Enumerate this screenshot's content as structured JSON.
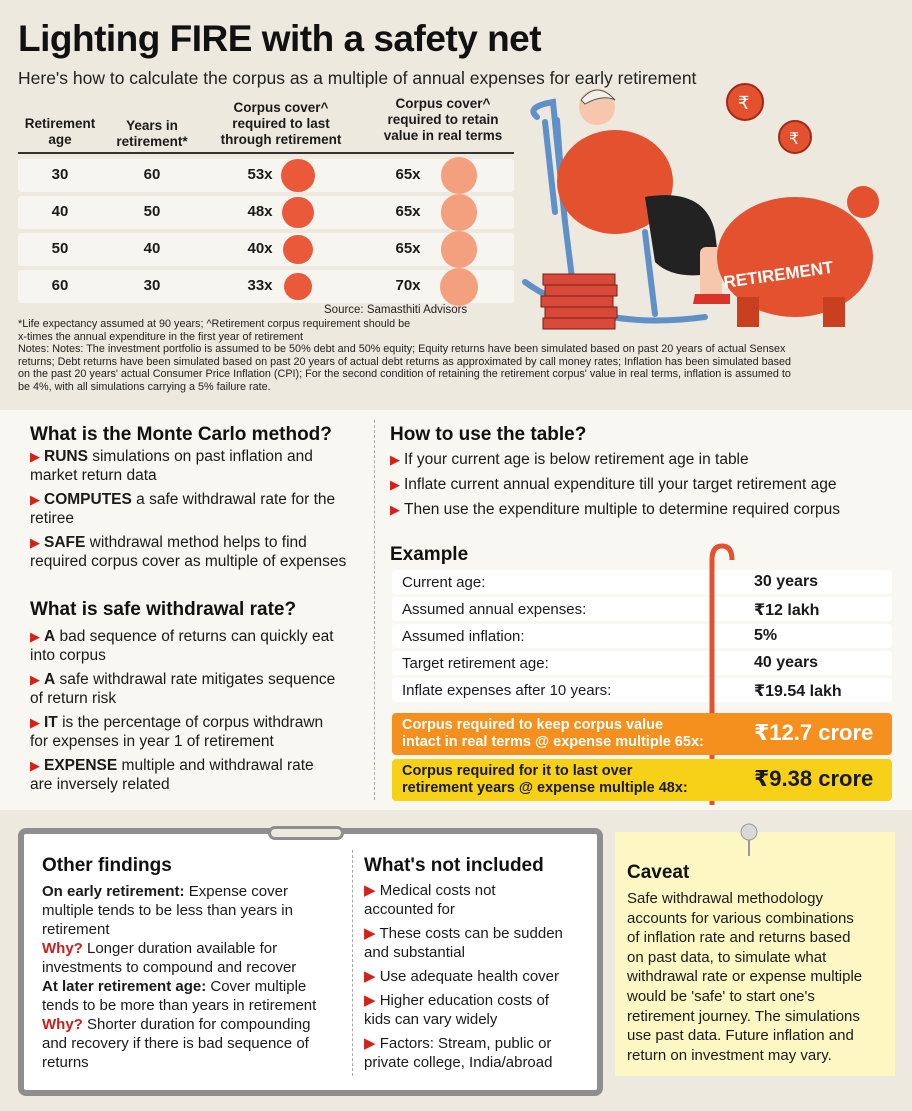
{
  "title": "Lighting FIRE with a safety net",
  "subtitle": "Here's how to calculate the corpus as a multiple of annual expenses for early retirement",
  "colors": {
    "cover_last": "#ea5a3a",
    "cover_real": "#f4a07f",
    "accent_red": "#d5211c",
    "orange": "#f5901e",
    "yellow": "#f7d117"
  },
  "chart_data": {
    "type": "table",
    "columns": [
      "Retirement age",
      "Years in retirement*",
      "Corpus cover^ required to last through retirement",
      "Corpus cover^ required to retain value in real terms"
    ],
    "rows": [
      {
        "age": "30",
        "years": "60",
        "last": "53x",
        "last_value": 53,
        "real": "65x",
        "real_value": 65
      },
      {
        "age": "40",
        "years": "50",
        "last": "48x",
        "last_value": 48,
        "real": "65x",
        "real_value": 65
      },
      {
        "age": "50",
        "years": "40",
        "last": "40x",
        "last_value": 40,
        "real": "65x",
        "real_value": 65
      },
      {
        "age": "60",
        "years": "30",
        "last": "33x",
        "last_value": 33,
        "real": "70x",
        "real_value": 70
      }
    ]
  },
  "table_headers": {
    "h1a": "Retirement",
    "h1b": "age",
    "h2a": "Years in",
    "h2b": "retirement*",
    "h3a": "Corpus cover^",
    "h3b": "required to last",
    "h3c": "through retirement",
    "h4a": "Corpus cover^",
    "h4b": "required to retain",
    "h4c": "value in real terms"
  },
  "illustration": {
    "piggy_label": "RETIREMENT",
    "coin_symbol": "₹"
  },
  "source": "Source: Samasthiti Advisors",
  "notes": {
    "line1": "*Life expectancy assumed at 90 years; ^Retirement corpus requirement should be",
    "line2": "x-times the annual expenditure in the first year of retirement",
    "line3": "Notes: Notes: The investment portfolio is assumed to be 50% debt and 50% equity; Equity returns have been simulated based on past 20 years of actual Sensex",
    "line4": "returns; Debt returns have been simulated based on past 20 years of actual debt returns as approximated by call money rates; Inflation has been simulated based",
    "line5": "on the past 20 years' actual Consumer Price Inflation (CPI); For the second condition of retaining the retirement corpus' value in real terms, inflation is assumed to",
    "line6": "be 4%, with all simulations carrying a 5% failure rate."
  },
  "monte_carlo": {
    "heading": "What is the Monte Carlo method?",
    "b1_bold": "RUNS",
    "b1_l1": " simulations on past inflation and",
    "b1_l2": "market return data",
    "b2_bold": "COMPUTES",
    "b2_l1": " a safe withdrawal rate for the",
    "b2_l2": "retiree",
    "b3_bold": "SAFE",
    "b3_l1": " withdrawal method helps to find",
    "b3_l2": "required corpus cover as multiple of expenses"
  },
  "swr": {
    "heading": "What is safe withdrawal rate?",
    "b1_bold": "A",
    "b1_l1": " bad sequence of returns can quickly eat",
    "b1_l2": "into corpus",
    "b2_bold": "A",
    "b2_l1": " safe withdrawal rate mitigates sequence",
    "b2_l2": "of return risk",
    "b3_bold": "IT",
    "b3_l1": " is the percentage of corpus withdrawn",
    "b3_l2": "for expenses in year 1 of retirement",
    "b4_bold": "EXPENSE",
    "b4_l1": " multiple and withdrawal rate",
    "b4_l2": "are inversely related"
  },
  "how_to": {
    "heading": "How to use the table?",
    "b1": "If your current age is below retirement age in table",
    "b2": "Inflate current annual expenditure till your target retirement age",
    "b3": "Then use the expenditure multiple to determine required corpus"
  },
  "example": {
    "heading": "Example",
    "rows": [
      {
        "k": "Current age:",
        "v": "30 years"
      },
      {
        "k": "Assumed annual expenses:",
        "v": "₹12 lakh"
      },
      {
        "k": "Assumed inflation:",
        "v": "5%"
      },
      {
        "k": "Target retirement age:",
        "v": "40 years"
      },
      {
        "k": "Inflate expenses after 10 years:",
        "v": "₹19.54 lakh"
      }
    ],
    "hl1_l1": "Corpus required to keep corpus value",
    "hl1_l2": "intact in real terms @ expense multiple 65x:",
    "hl1_v": "₹12.7 crore",
    "hl2_l1": "Corpus required for it to last over",
    "hl2_l2": "retirement years @ expense multiple 48x:",
    "hl2_v": "₹9.38 crore"
  },
  "other": {
    "heading": "Other findings",
    "e_bold": "On early retirement:",
    "e_l1": " Expense cover",
    "e_l2": "multiple tends to be less than years in",
    "e_l3": "retirement",
    "why": "Why?",
    "w1_l1": " Longer duration available for",
    "w1_l2": "investments to compound and recover",
    "l_bold": "At later retirement age:",
    "l_l1": " Cover multiple",
    "l_l2": "tends to be more than years in retirement",
    "w2_l1": " Shorter duration for compounding",
    "w2_l2": "and recovery if there is bad sequence of",
    "w2_l3": "returns"
  },
  "not_included": {
    "heading": "What's not included",
    "b1_l1": "Medical costs not",
    "b1_l2": "accounted for",
    "b2_l1": "These costs can be sudden",
    "b2_l2": "and substantial",
    "b3_l1": "Use adequate health cover",
    "b4_l1": "Higher education costs of",
    "b4_l2": "kids can vary widely",
    "b5_l1": "Factors: Stream, public or",
    "b5_l2": "private college, India/abroad"
  },
  "caveat": {
    "heading": "Caveat",
    "lines": [
      "Safe withdrawal methodology",
      "accounts for various combinations",
      "of inflation rate and returns based",
      "on past data, to simulate what",
      "withdrawal rate or expense multiple",
      "would be 'safe' to start one's",
      "retirement journey. The simulations",
      "use past data. Future inflation and",
      "return on investment may vary."
    ]
  }
}
